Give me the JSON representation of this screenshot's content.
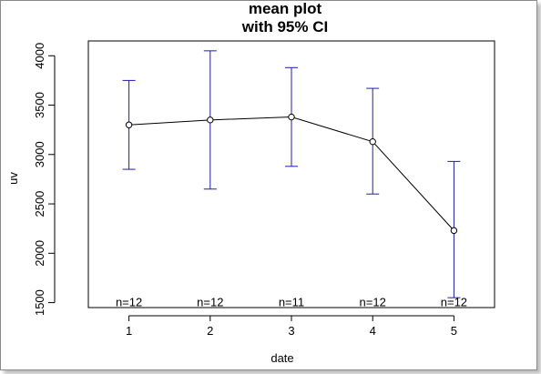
{
  "chart_data": {
    "type": "line",
    "title": "mean plot",
    "subtitle": "with 95% CI",
    "xlabel": "date",
    "ylabel": "uv",
    "categories": [
      "1",
      "2",
      "3",
      "4",
      "5"
    ],
    "x": [
      1,
      2,
      3,
      4,
      5
    ],
    "xlim": [
      0.5,
      5.5
    ],
    "ylim": [
      1450,
      4150
    ],
    "yticks": [
      1500,
      2000,
      2500,
      3000,
      3500,
      4000
    ],
    "series": [
      {
        "values": [
          3300,
          3350,
          3380,
          3130,
          2230
        ],
        "ci_lower": [
          2850,
          2650,
          2880,
          2600,
          1550
        ],
        "ci_upper": [
          3750,
          4050,
          3880,
          3670,
          2930
        ]
      }
    ],
    "annotations": [
      "n=12",
      "n=12",
      "n=11",
      "n=12",
      "n=12"
    ],
    "grid": false,
    "legend": "none",
    "colors": {
      "line": "#000000",
      "error_bar": "#1c1cb4",
      "axis": "#000000"
    }
  }
}
